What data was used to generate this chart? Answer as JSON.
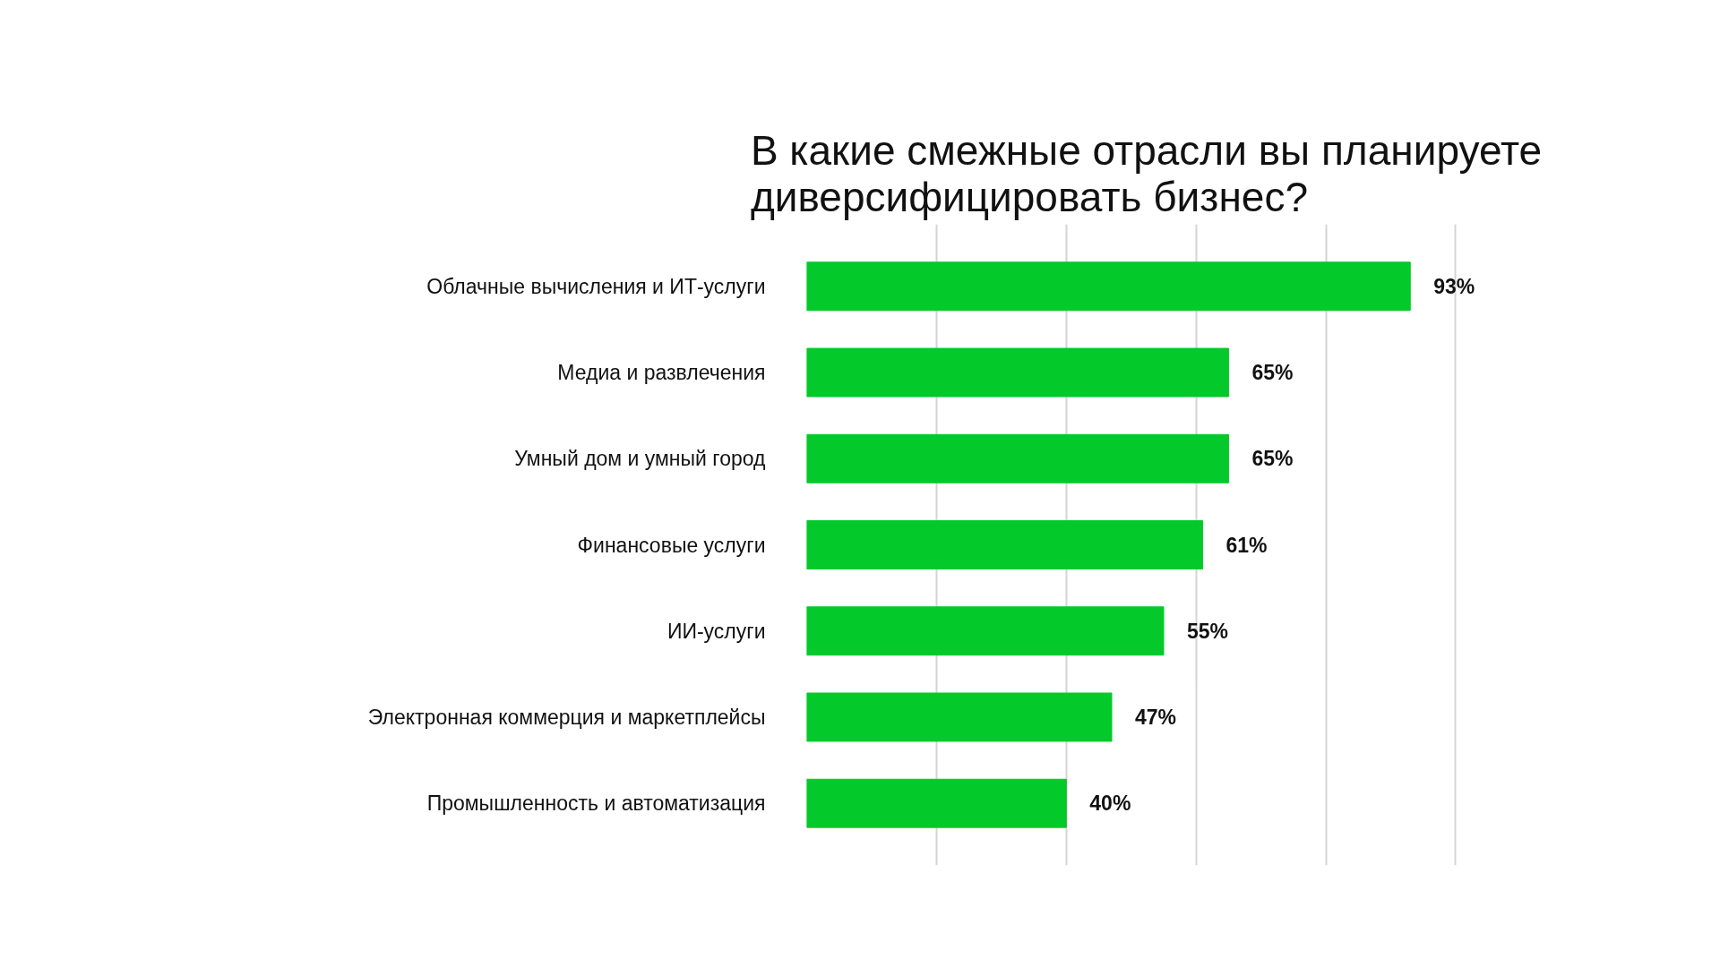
{
  "chart_data": {
    "type": "bar",
    "orientation": "horizontal",
    "title": "В какие смежные отрасли вы планируете диверсифицировать бизнес?",
    "categories": [
      "Облачные вычисления и ИТ-услуги",
      "Медиа и развлечения",
      "Умный дом и умный город",
      "Финансовые услуги",
      "ИИ-услуги",
      "Электронная коммерция и маркетплейсы",
      "Промышленность и автоматизация"
    ],
    "values": [
      93,
      65,
      65,
      61,
      55,
      47,
      40
    ],
    "color": "#04c92a",
    "value_labels": [
      "93%",
      "65%",
      "65%",
      "61%",
      "55%",
      "47%",
      "40%"
    ],
    "grid": "x",
    "tick_labels": "y"
  }
}
